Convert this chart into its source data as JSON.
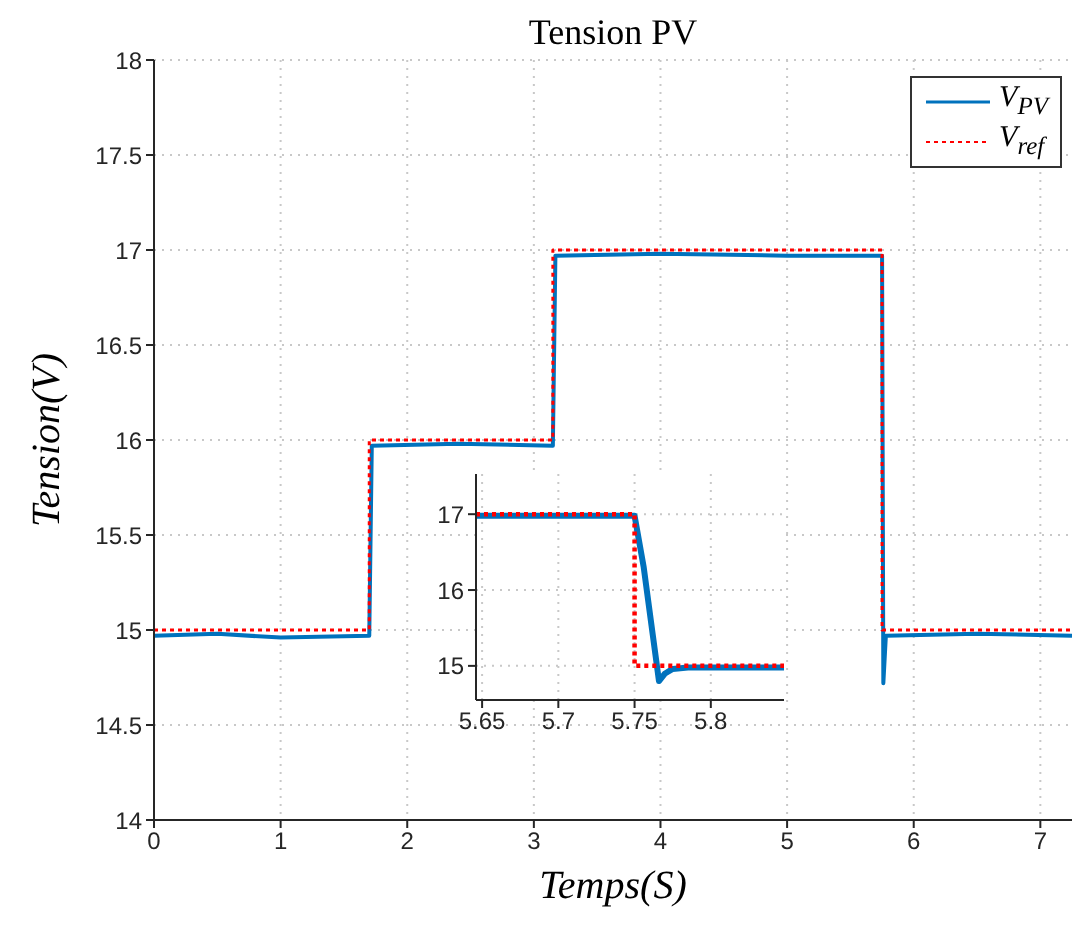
{
  "chart_data": [
    {
      "type": "line",
      "title": "Tension PV",
      "xlabel": "Temps(S)",
      "ylabel": "Tension(V)",
      "xlim": [
        0,
        7.25
      ],
      "xticks": [
        0,
        1,
        2,
        3,
        4,
        5,
        6,
        7
      ],
      "ylim": [
        14,
        18
      ],
      "yticks": [
        14,
        14.5,
        15,
        15.5,
        16,
        16.5,
        17,
        17.5,
        18
      ],
      "grid": true,
      "legend": "top right",
      "marker": "none",
      "series": [
        {
          "name": "V$_{PV}$",
          "color": "#0072bd",
          "line_style": "solid",
          "x": [
            0,
            0.5,
            1,
            1.7,
            1.72,
            2.4,
            3.15,
            3.17,
            4,
            5,
            5.75,
            5.76,
            5.78,
            6.5,
            7.25
          ],
          "values": [
            14.97,
            14.98,
            14.96,
            14.97,
            15.97,
            15.98,
            15.97,
            16.97,
            16.98,
            16.97,
            16.97,
            14.72,
            14.97,
            14.98,
            14.97
          ]
        },
        {
          "name": "V$_{ref}$",
          "color": "#ff0000",
          "line_style": "dotted",
          "x": [
            0,
            1.7,
            1.7,
            3.15,
            3.15,
            5.75,
            5.75,
            7.25
          ],
          "values": [
            15,
            15,
            16,
            16,
            17,
            17,
            15,
            15
          ]
        }
      ]
    },
    {
      "type": "line",
      "xlim": [
        5.646,
        5.848
      ],
      "xticks": [
        5.65,
        5.7,
        5.75,
        5.8
      ],
      "ylim": [
        14.55,
        17.53
      ],
      "yticks": [
        15,
        16,
        17
      ],
      "grid": true,
      "marker": "none",
      "series": [
        {
          "color": "#0072bd",
          "line_style": "solid",
          "x": [
            5.646,
            5.75,
            5.756,
            5.762,
            5.766,
            5.77,
            5.775,
            5.785,
            5.848
          ],
          "values": [
            16.98,
            16.98,
            16.3,
            15.4,
            14.8,
            14.9,
            14.96,
            14.98,
            14.98
          ]
        },
        {
          "color": "#ff0000",
          "line_style": "dotted",
          "x": [
            5.646,
            5.75,
            5.75,
            5.848
          ],
          "values": [
            17,
            17,
            15,
            15
          ]
        }
      ]
    }
  ]
}
